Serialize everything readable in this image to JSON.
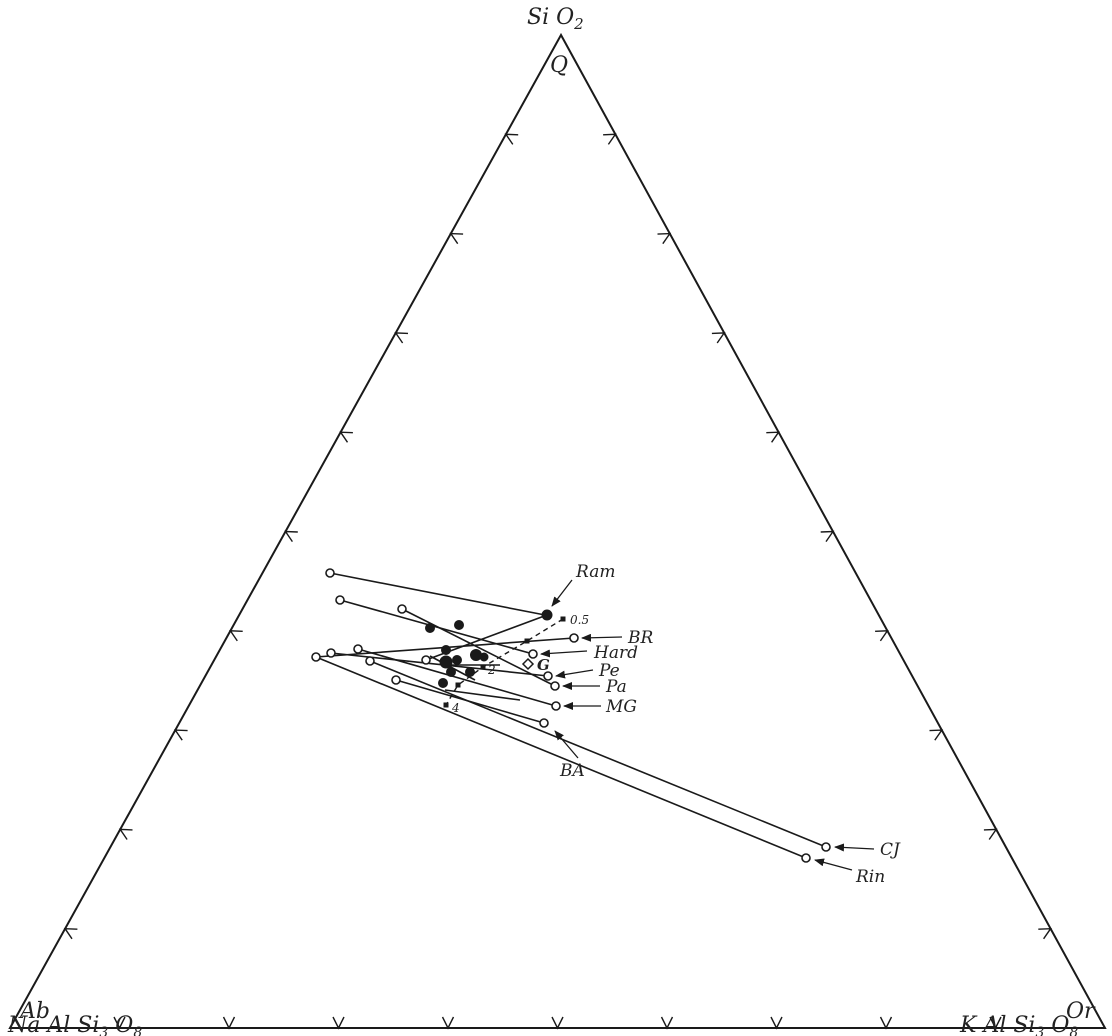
{
  "vertices": {
    "top": {
      "formula_main": "Si O",
      "formula_sub": "2",
      "letter": "Q"
    },
    "left": {
      "formula_main": "Na Al Si",
      "formula_sub1": "3",
      "formula_main2": " O",
      "formula_sub2": "8",
      "letter": "Ab"
    },
    "right": {
      "formula_main": "K Al Si",
      "formula_sub1": "3",
      "formula_main2": " O",
      "formula_sub2": "8",
      "letter": "Or"
    }
  },
  "labels": [
    {
      "text": "Ram"
    },
    {
      "text": "BR"
    },
    {
      "text": "Hard"
    },
    {
      "text": "Pe"
    },
    {
      "text": "Pa"
    },
    {
      "text": "MG"
    },
    {
      "text": "BA"
    },
    {
      "text": "CJ"
    },
    {
      "text": "Rin"
    },
    {
      "text": "G"
    }
  ],
  "small_labels": [
    {
      "text": "0.5"
    },
    {
      "text": "2"
    },
    {
      "text": "4"
    }
  ],
  "colors": {
    "line": "#1a1a1a",
    "fill_open": "#ffffff",
    "fill_solid": "#1a1a1a"
  }
}
